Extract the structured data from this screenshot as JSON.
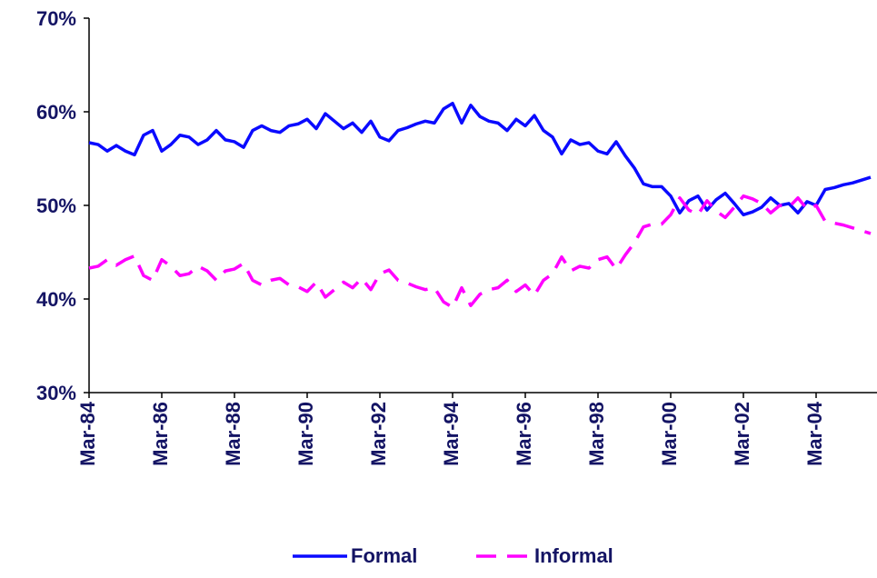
{
  "chart_data": {
    "type": "line",
    "categories": [
      "Mar-84",
      null,
      null,
      null,
      null,
      null,
      null,
      null,
      "Mar-86",
      null,
      null,
      null,
      null,
      null,
      null,
      null,
      "Mar-88",
      null,
      null,
      null,
      null,
      null,
      null,
      null,
      "Mar-90",
      null,
      null,
      null,
      null,
      null,
      null,
      null,
      "Mar-92",
      null,
      null,
      null,
      null,
      null,
      null,
      null,
      "Mar-94",
      null,
      null,
      null,
      null,
      null,
      null,
      null,
      "Mar-96",
      null,
      null,
      null,
      null,
      null,
      null,
      null,
      "Mar-98",
      null,
      null,
      null,
      null,
      null,
      null,
      null,
      "Mar-00",
      null,
      null,
      null,
      null,
      null,
      null,
      null,
      "Mar-02",
      null,
      null,
      null,
      null,
      null,
      null,
      null,
      "Mar-04",
      null,
      null,
      null,
      null,
      null,
      null
    ],
    "series": [
      {
        "name": "Formal",
        "color": "#0a0aff",
        "dashed": false,
        "values": [
          56.7,
          56.5,
          55.8,
          56.4,
          55.8,
          55.4,
          57.5,
          58.0,
          55.8,
          56.5,
          57.5,
          57.3,
          56.5,
          57.0,
          58.0,
          57.0,
          56.8,
          56.2,
          58.0,
          58.5,
          58.0,
          57.8,
          58.5,
          58.7,
          59.2,
          58.2,
          59.8,
          59.0,
          58.2,
          58.8,
          57.8,
          59.0,
          57.3,
          56.9,
          58.0,
          58.3,
          58.7,
          59.0,
          58.8,
          60.3,
          60.9,
          58.8,
          60.7,
          59.5,
          59.0,
          58.8,
          58.0,
          59.2,
          58.5,
          59.6,
          58.0,
          57.3,
          55.5,
          57.0,
          56.5,
          56.7,
          55.8,
          55.5,
          56.8,
          55.3,
          54.0,
          52.3,
          52.0,
          52.0,
          51.0,
          49.2,
          50.5,
          51.0,
          49.5,
          50.6,
          51.3,
          50.2,
          49.0,
          49.3,
          49.8,
          50.8,
          50.0,
          50.2,
          49.2,
          50.4,
          50.0,
          51.7,
          51.9,
          52.2,
          52.4,
          52.7,
          53.0
        ]
      },
      {
        "name": "Informal",
        "color": "#ff00ff",
        "dashed": true,
        "values": [
          43.3,
          43.5,
          44.2,
          43.6,
          44.2,
          44.6,
          42.5,
          42.0,
          44.2,
          43.5,
          42.5,
          42.7,
          43.5,
          43.0,
          42.0,
          43.0,
          43.2,
          43.8,
          42.0,
          41.5,
          42.0,
          42.2,
          41.5,
          41.3,
          40.8,
          41.8,
          40.2,
          41.0,
          41.8,
          41.2,
          42.2,
          41.0,
          42.7,
          43.1,
          42.0,
          41.7,
          41.3,
          41.0,
          41.2,
          39.7,
          39.1,
          41.2,
          39.3,
          40.5,
          41.0,
          41.2,
          42.0,
          40.8,
          41.5,
          40.4,
          42.0,
          42.7,
          44.5,
          43.0,
          43.5,
          43.3,
          44.2,
          44.5,
          43.2,
          44.7,
          46.0,
          47.7,
          48.0,
          48.0,
          49.0,
          50.8,
          49.5,
          49.0,
          50.5,
          49.4,
          48.7,
          49.8,
          51.0,
          50.7,
          50.2,
          49.2,
          50.0,
          49.8,
          50.8,
          49.6,
          50.0,
          48.3,
          48.1,
          47.9,
          47.6,
          47.3,
          47.0
        ]
      }
    ],
    "ylim": [
      30,
      70
    ],
    "yticks": [
      {
        "value": 30,
        "label": "30%"
      },
      {
        "value": 40,
        "label": "40%"
      },
      {
        "value": 50,
        "label": "50%"
      },
      {
        "value": 60,
        "label": "60%"
      },
      {
        "value": 70,
        "label": "70%"
      }
    ],
    "grid": false,
    "legend": "bottom"
  }
}
